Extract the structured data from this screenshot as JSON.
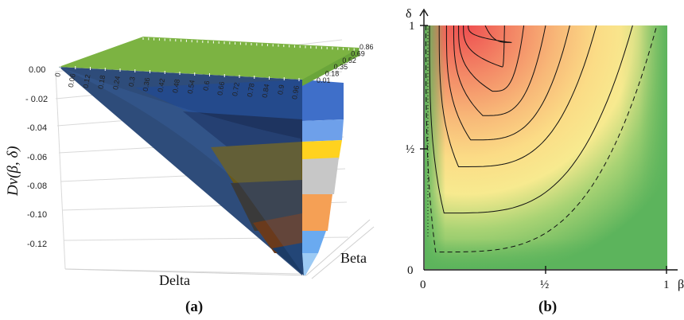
{
  "chart_data": [
    {
      "type": "surface",
      "caption": "(a)",
      "zlabel": "Dv(β, δ)",
      "xlabel": "Delta",
      "ylabel": "Beta",
      "zticks": [
        "0.00",
        "- 0.02",
        "-0.04",
        "-0.06",
        "-0.08",
        "-0.10",
        "-0.12"
      ],
      "zlim": [
        -0.12,
        0.0
      ],
      "delta_ticks": [
        "0",
        "0.06",
        "0.12",
        "0.18",
        "0.24",
        "0.3",
        "0.36",
        "0.42",
        "0.48",
        "0.54",
        "0.6",
        "0.66",
        "0.72",
        "0.78",
        "0.84",
        "0.9",
        "0.96"
      ],
      "beta_ticks": [
        "0.01",
        "0.18",
        "0.35",
        "0.52",
        "0.69",
        "0.86"
      ],
      "surface_min": {
        "delta": 1.0,
        "beta": 0.0,
        "value": -0.125
      },
      "surface_max": {
        "value": 0.0
      },
      "band_colors": [
        "#7cb342",
        "#3c6fc4",
        "#5e8ed6",
        "#ffd21f",
        "#c7c7c7",
        "#f4a054",
        "#5a9fe0"
      ],
      "grid": true
    },
    {
      "type": "contour",
      "caption": "(b)",
      "xlabel": "β",
      "ylabel": "δ",
      "xticks": [
        "0",
        "½",
        "1"
      ],
      "yticks": [
        "0",
        "½",
        "1"
      ],
      "xlim": [
        0,
        1
      ],
      "ylim": [
        0,
        1
      ],
      "colormap": [
        "#5cb85c",
        "#a8d470",
        "#fde68a",
        "#f9b27a",
        "#ef5a5a"
      ],
      "grid": false
    }
  ]
}
